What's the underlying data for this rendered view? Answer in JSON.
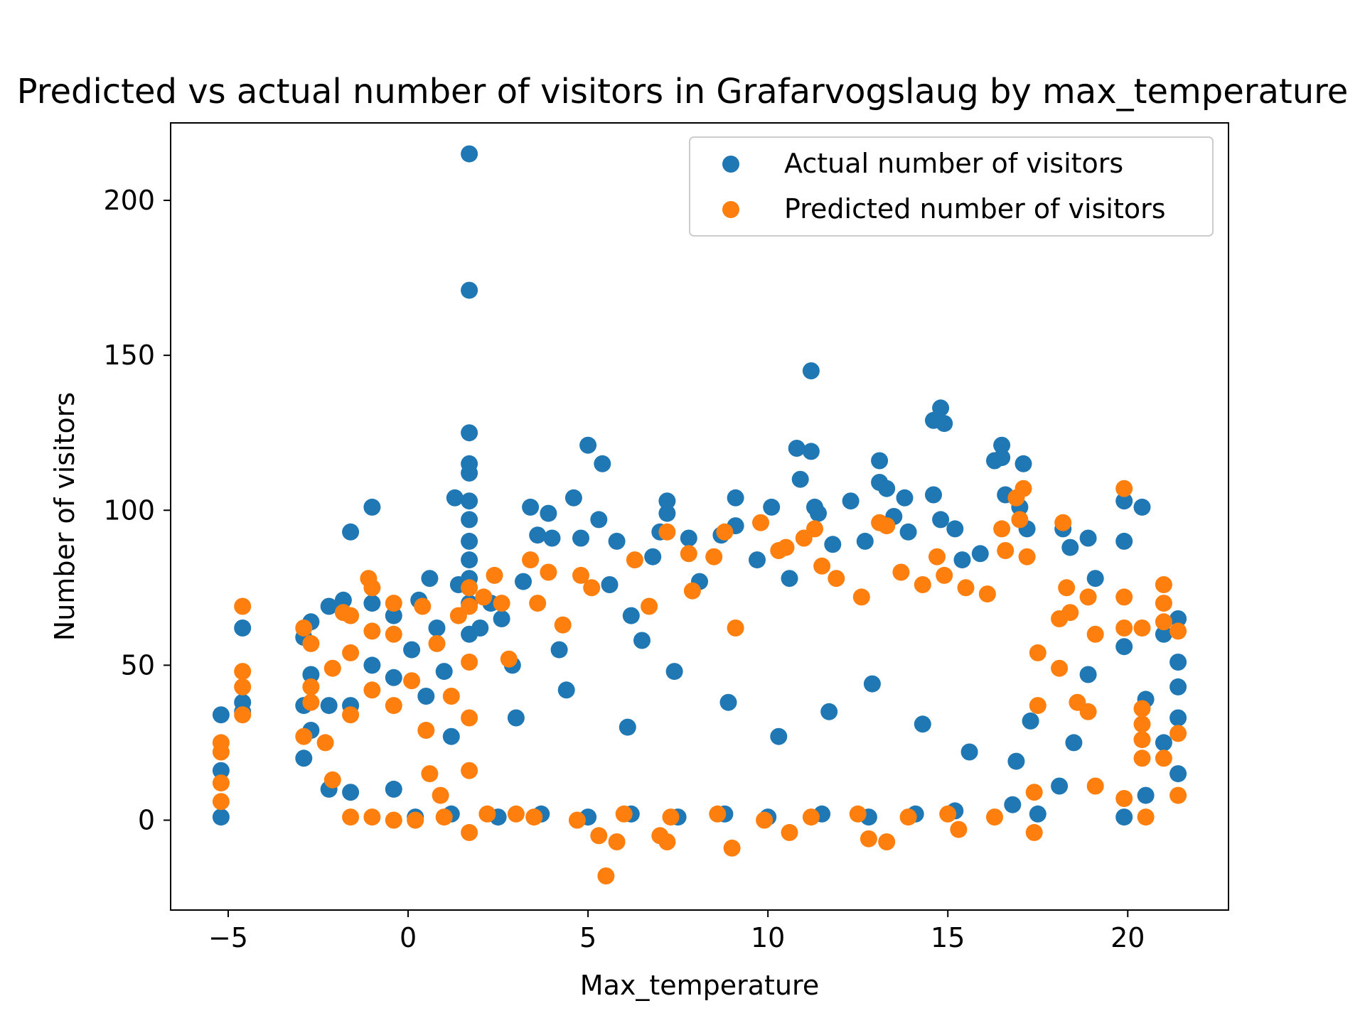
{
  "chart_data": {
    "type": "scatter",
    "title": "Predicted vs actual number of visitors in Grafarvogslaug by max_temperature",
    "xlabel": "Max_temperature",
    "ylabel": "Number of visitors",
    "xlim": [
      -6.6,
      22.8
    ],
    "ylim": [
      -29,
      225
    ],
    "xticks": [
      -5,
      0,
      5,
      10,
      15,
      20
    ],
    "yticks": [
      0,
      50,
      100,
      150,
      200
    ],
    "xtick_labels": [
      "−5",
      "0",
      "5",
      "10",
      "15",
      "20"
    ],
    "ytick_labels": [
      "0",
      "50",
      "100",
      "150",
      "200"
    ],
    "grid": false,
    "legend_position": "top-right",
    "series": [
      {
        "name": "Actual number of visitors",
        "color": "#1f77b4",
        "points": [
          [
            -5.2,
            34
          ],
          [
            -5.2,
            16
          ],
          [
            -5.2,
            1
          ],
          [
            -4.6,
            62
          ],
          [
            -4.6,
            38
          ],
          [
            -4.6,
            35
          ],
          [
            -2.9,
            59
          ],
          [
            -2.9,
            37
          ],
          [
            -2.9,
            20
          ],
          [
            -2.7,
            64
          ],
          [
            -2.7,
            47
          ],
          [
            -2.7,
            29
          ],
          [
            -2.2,
            69
          ],
          [
            -2.2,
            37
          ],
          [
            -2.2,
            10
          ],
          [
            -1.8,
            71
          ],
          [
            -1.6,
            93
          ],
          [
            -1.6,
            37
          ],
          [
            -1.6,
            9
          ],
          [
            -1.0,
            101
          ],
          [
            -1.0,
            70
          ],
          [
            -1.0,
            50
          ],
          [
            -0.4,
            66
          ],
          [
            -0.4,
            46
          ],
          [
            -0.4,
            10
          ],
          [
            0.1,
            55
          ],
          [
            0.3,
            71
          ],
          [
            0.5,
            40
          ],
          [
            0.6,
            78
          ],
          [
            0.8,
            62
          ],
          [
            1.0,
            48
          ],
          [
            1.2,
            27
          ],
          [
            1.3,
            104
          ],
          [
            1.4,
            76
          ],
          [
            1.7,
            215
          ],
          [
            1.7,
            171
          ],
          [
            1.7,
            125
          ],
          [
            1.7,
            115
          ],
          [
            1.7,
            112
          ],
          [
            1.7,
            103
          ],
          [
            1.7,
            97
          ],
          [
            1.7,
            90
          ],
          [
            1.7,
            84
          ],
          [
            1.7,
            78
          ],
          [
            1.7,
            70
          ],
          [
            1.7,
            60
          ],
          [
            2.0,
            62
          ],
          [
            2.3,
            70
          ],
          [
            2.6,
            65
          ],
          [
            2.9,
            50
          ],
          [
            3.2,
            77
          ],
          [
            3.4,
            101
          ],
          [
            3.6,
            92
          ],
          [
            3.9,
            99
          ],
          [
            4.0,
            91
          ],
          [
            4.2,
            55
          ],
          [
            4.6,
            104
          ],
          [
            4.8,
            91
          ],
          [
            5.0,
            121
          ],
          [
            5.3,
            97
          ],
          [
            5.4,
            115
          ],
          [
            5.6,
            76
          ],
          [
            5.8,
            90
          ],
          [
            6.2,
            66
          ],
          [
            6.5,
            58
          ],
          [
            6.8,
            85
          ],
          [
            7.0,
            93
          ],
          [
            7.2,
            103
          ],
          [
            7.2,
            99
          ],
          [
            7.8,
            91
          ],
          [
            8.1,
            77
          ],
          [
            8.7,
            92
          ],
          [
            9.1,
            104
          ],
          [
            9.1,
            95
          ],
          [
            9.7,
            84
          ],
          [
            10.1,
            101
          ],
          [
            10.6,
            78
          ],
          [
            10.8,
            120
          ],
          [
            10.9,
            110
          ],
          [
            11.2,
            145
          ],
          [
            11.2,
            119
          ],
          [
            11.3,
            101
          ],
          [
            11.4,
            99
          ],
          [
            11.8,
            89
          ],
          [
            12.3,
            103
          ],
          [
            12.7,
            90
          ],
          [
            13.1,
            116
          ],
          [
            13.1,
            109
          ],
          [
            13.3,
            107
          ],
          [
            13.5,
            98
          ],
          [
            13.8,
            104
          ],
          [
            13.9,
            93
          ],
          [
            14.6,
            129
          ],
          [
            14.8,
            133
          ],
          [
            14.9,
            128
          ],
          [
            14.6,
            105
          ],
          [
            14.8,
            97
          ],
          [
            15.2,
            94
          ],
          [
            15.4,
            84
          ],
          [
            15.9,
            86
          ],
          [
            16.3,
            116
          ],
          [
            16.5,
            121
          ],
          [
            16.5,
            117
          ],
          [
            16.6,
            105
          ],
          [
            17.0,
            101
          ],
          [
            17.1,
            115
          ],
          [
            17.2,
            94
          ],
          [
            18.2,
            94
          ],
          [
            18.4,
            88
          ],
          [
            18.9,
            91
          ],
          [
            19.1,
            78
          ],
          [
            18.9,
            47
          ],
          [
            18.5,
            25
          ],
          [
            18.1,
            11
          ],
          [
            17.5,
            2
          ],
          [
            16.8,
            5
          ],
          [
            19.9,
            90
          ],
          [
            19.9,
            103
          ],
          [
            19.9,
            56
          ],
          [
            19.9,
            1
          ],
          [
            20.4,
            101
          ],
          [
            20.5,
            39
          ],
          [
            20.5,
            8
          ],
          [
            21.0,
            60
          ],
          [
            21.0,
            25
          ],
          [
            21.4,
            65
          ],
          [
            21.4,
            51
          ],
          [
            21.4,
            43
          ],
          [
            21.4,
            33
          ],
          [
            21.4,
            15
          ],
          [
            0.2,
            1
          ],
          [
            1.2,
            2
          ],
          [
            2.5,
            1
          ],
          [
            3.7,
            2
          ],
          [
            5.0,
            1
          ],
          [
            6.2,
            2
          ],
          [
            7.5,
            1
          ],
          [
            8.8,
            2
          ],
          [
            10.0,
            1
          ],
          [
            11.5,
            2
          ],
          [
            12.8,
            1
          ],
          [
            14.1,
            2
          ],
          [
            15.2,
            3
          ],
          [
            3.0,
            33
          ],
          [
            4.4,
            42
          ],
          [
            6.1,
            30
          ],
          [
            7.4,
            48
          ],
          [
            8.9,
            38
          ],
          [
            10.3,
            27
          ],
          [
            11.7,
            35
          ],
          [
            12.9,
            44
          ],
          [
            14.3,
            31
          ],
          [
            15.6,
            22
          ],
          [
            16.9,
            19
          ],
          [
            17.3,
            32
          ]
        ]
      },
      {
        "name": "Predicted number of visitors",
        "color": "#ff7f0e",
        "points": [
          [
            -5.2,
            25
          ],
          [
            -5.2,
            22
          ],
          [
            -5.2,
            12
          ],
          [
            -5.2,
            6
          ],
          [
            -4.6,
            69
          ],
          [
            -4.6,
            48
          ],
          [
            -4.6,
            43
          ],
          [
            -4.6,
            34
          ],
          [
            -2.9,
            62
          ],
          [
            -2.9,
            27
          ],
          [
            -2.7,
            57
          ],
          [
            -2.7,
            43
          ],
          [
            -2.7,
            38
          ],
          [
            -2.3,
            25
          ],
          [
            -2.1,
            49
          ],
          [
            -2.1,
            13
          ],
          [
            -1.8,
            67
          ],
          [
            -1.6,
            66
          ],
          [
            -1.6,
            54
          ],
          [
            -1.6,
            34
          ],
          [
            -1.6,
            1
          ],
          [
            -1.1,
            78
          ],
          [
            -1.0,
            75
          ],
          [
            -1.0,
            61
          ],
          [
            -1.0,
            42
          ],
          [
            -1.0,
            1
          ],
          [
            -0.4,
            70
          ],
          [
            -0.4,
            60
          ],
          [
            -0.4,
            37
          ],
          [
            -0.4,
            0
          ],
          [
            0.1,
            45
          ],
          [
            0.4,
            69
          ],
          [
            0.5,
            29
          ],
          [
            0.6,
            15
          ],
          [
            0.8,
            57
          ],
          [
            0.9,
            8
          ],
          [
            1.2,
            40
          ],
          [
            1.4,
            66
          ],
          [
            1.7,
            75
          ],
          [
            1.7,
            69
          ],
          [
            1.7,
            51
          ],
          [
            1.7,
            33
          ],
          [
            1.7,
            16
          ],
          [
            1.7,
            -4
          ],
          [
            2.1,
            72
          ],
          [
            2.4,
            79
          ],
          [
            2.6,
            70
          ],
          [
            2.8,
            52
          ],
          [
            3.0,
            2
          ],
          [
            3.4,
            84
          ],
          [
            3.6,
            70
          ],
          [
            3.9,
            80
          ],
          [
            4.3,
            63
          ],
          [
            4.8,
            79
          ],
          [
            5.1,
            75
          ],
          [
            5.3,
            -5
          ],
          [
            5.5,
            -18
          ],
          [
            5.8,
            -7
          ],
          [
            6.3,
            84
          ],
          [
            6.7,
            69
          ],
          [
            7.0,
            -5
          ],
          [
            7.2,
            93
          ],
          [
            7.2,
            -7
          ],
          [
            7.8,
            86
          ],
          [
            7.9,
            74
          ],
          [
            8.5,
            85
          ],
          [
            8.8,
            93
          ],
          [
            9.0,
            -9
          ],
          [
            9.1,
            62
          ],
          [
            9.8,
            96
          ],
          [
            10.3,
            87
          ],
          [
            10.5,
            88
          ],
          [
            10.6,
            -4
          ],
          [
            11.0,
            91
          ],
          [
            11.3,
            94
          ],
          [
            11.5,
            82
          ],
          [
            11.9,
            78
          ],
          [
            12.6,
            72
          ],
          [
            12.8,
            -6
          ],
          [
            13.1,
            96
          ],
          [
            13.3,
            95
          ],
          [
            13.3,
            -7
          ],
          [
            13.7,
            80
          ],
          [
            14.3,
            76
          ],
          [
            14.7,
            85
          ],
          [
            14.9,
            79
          ],
          [
            15.3,
            -3
          ],
          [
            15.5,
            75
          ],
          [
            16.1,
            73
          ],
          [
            16.5,
            94
          ],
          [
            16.6,
            87
          ],
          [
            16.9,
            104
          ],
          [
            17.0,
            97
          ],
          [
            17.1,
            107
          ],
          [
            17.2,
            85
          ],
          [
            17.4,
            -4
          ],
          [
            17.4,
            9
          ],
          [
            17.5,
            37
          ],
          [
            17.5,
            54
          ],
          [
            18.1,
            65
          ],
          [
            18.1,
            49
          ],
          [
            18.2,
            96
          ],
          [
            18.3,
            75
          ],
          [
            18.4,
            67
          ],
          [
            18.6,
            38
          ],
          [
            18.9,
            72
          ],
          [
            18.9,
            35
          ],
          [
            19.1,
            60
          ],
          [
            19.1,
            11
          ],
          [
            19.9,
            107
          ],
          [
            19.9,
            72
          ],
          [
            19.9,
            62
          ],
          [
            19.9,
            7
          ],
          [
            20.4,
            62
          ],
          [
            20.4,
            36
          ],
          [
            20.4,
            31
          ],
          [
            20.4,
            26
          ],
          [
            20.4,
            20
          ],
          [
            20.5,
            1
          ],
          [
            21.0,
            76
          ],
          [
            21.0,
            70
          ],
          [
            21.0,
            64
          ],
          [
            21.0,
            20
          ],
          [
            21.4,
            61
          ],
          [
            21.4,
            28
          ],
          [
            21.4,
            8
          ],
          [
            0.2,
            0
          ],
          [
            1.0,
            1
          ],
          [
            2.2,
            2
          ],
          [
            3.5,
            1
          ],
          [
            4.7,
            0
          ],
          [
            6.0,
            2
          ],
          [
            7.3,
            1
          ],
          [
            8.6,
            2
          ],
          [
            9.9,
            0
          ],
          [
            11.2,
            1
          ],
          [
            12.5,
            2
          ],
          [
            13.9,
            1
          ],
          [
            15.0,
            2
          ],
          [
            16.3,
            1
          ]
        ]
      }
    ]
  }
}
